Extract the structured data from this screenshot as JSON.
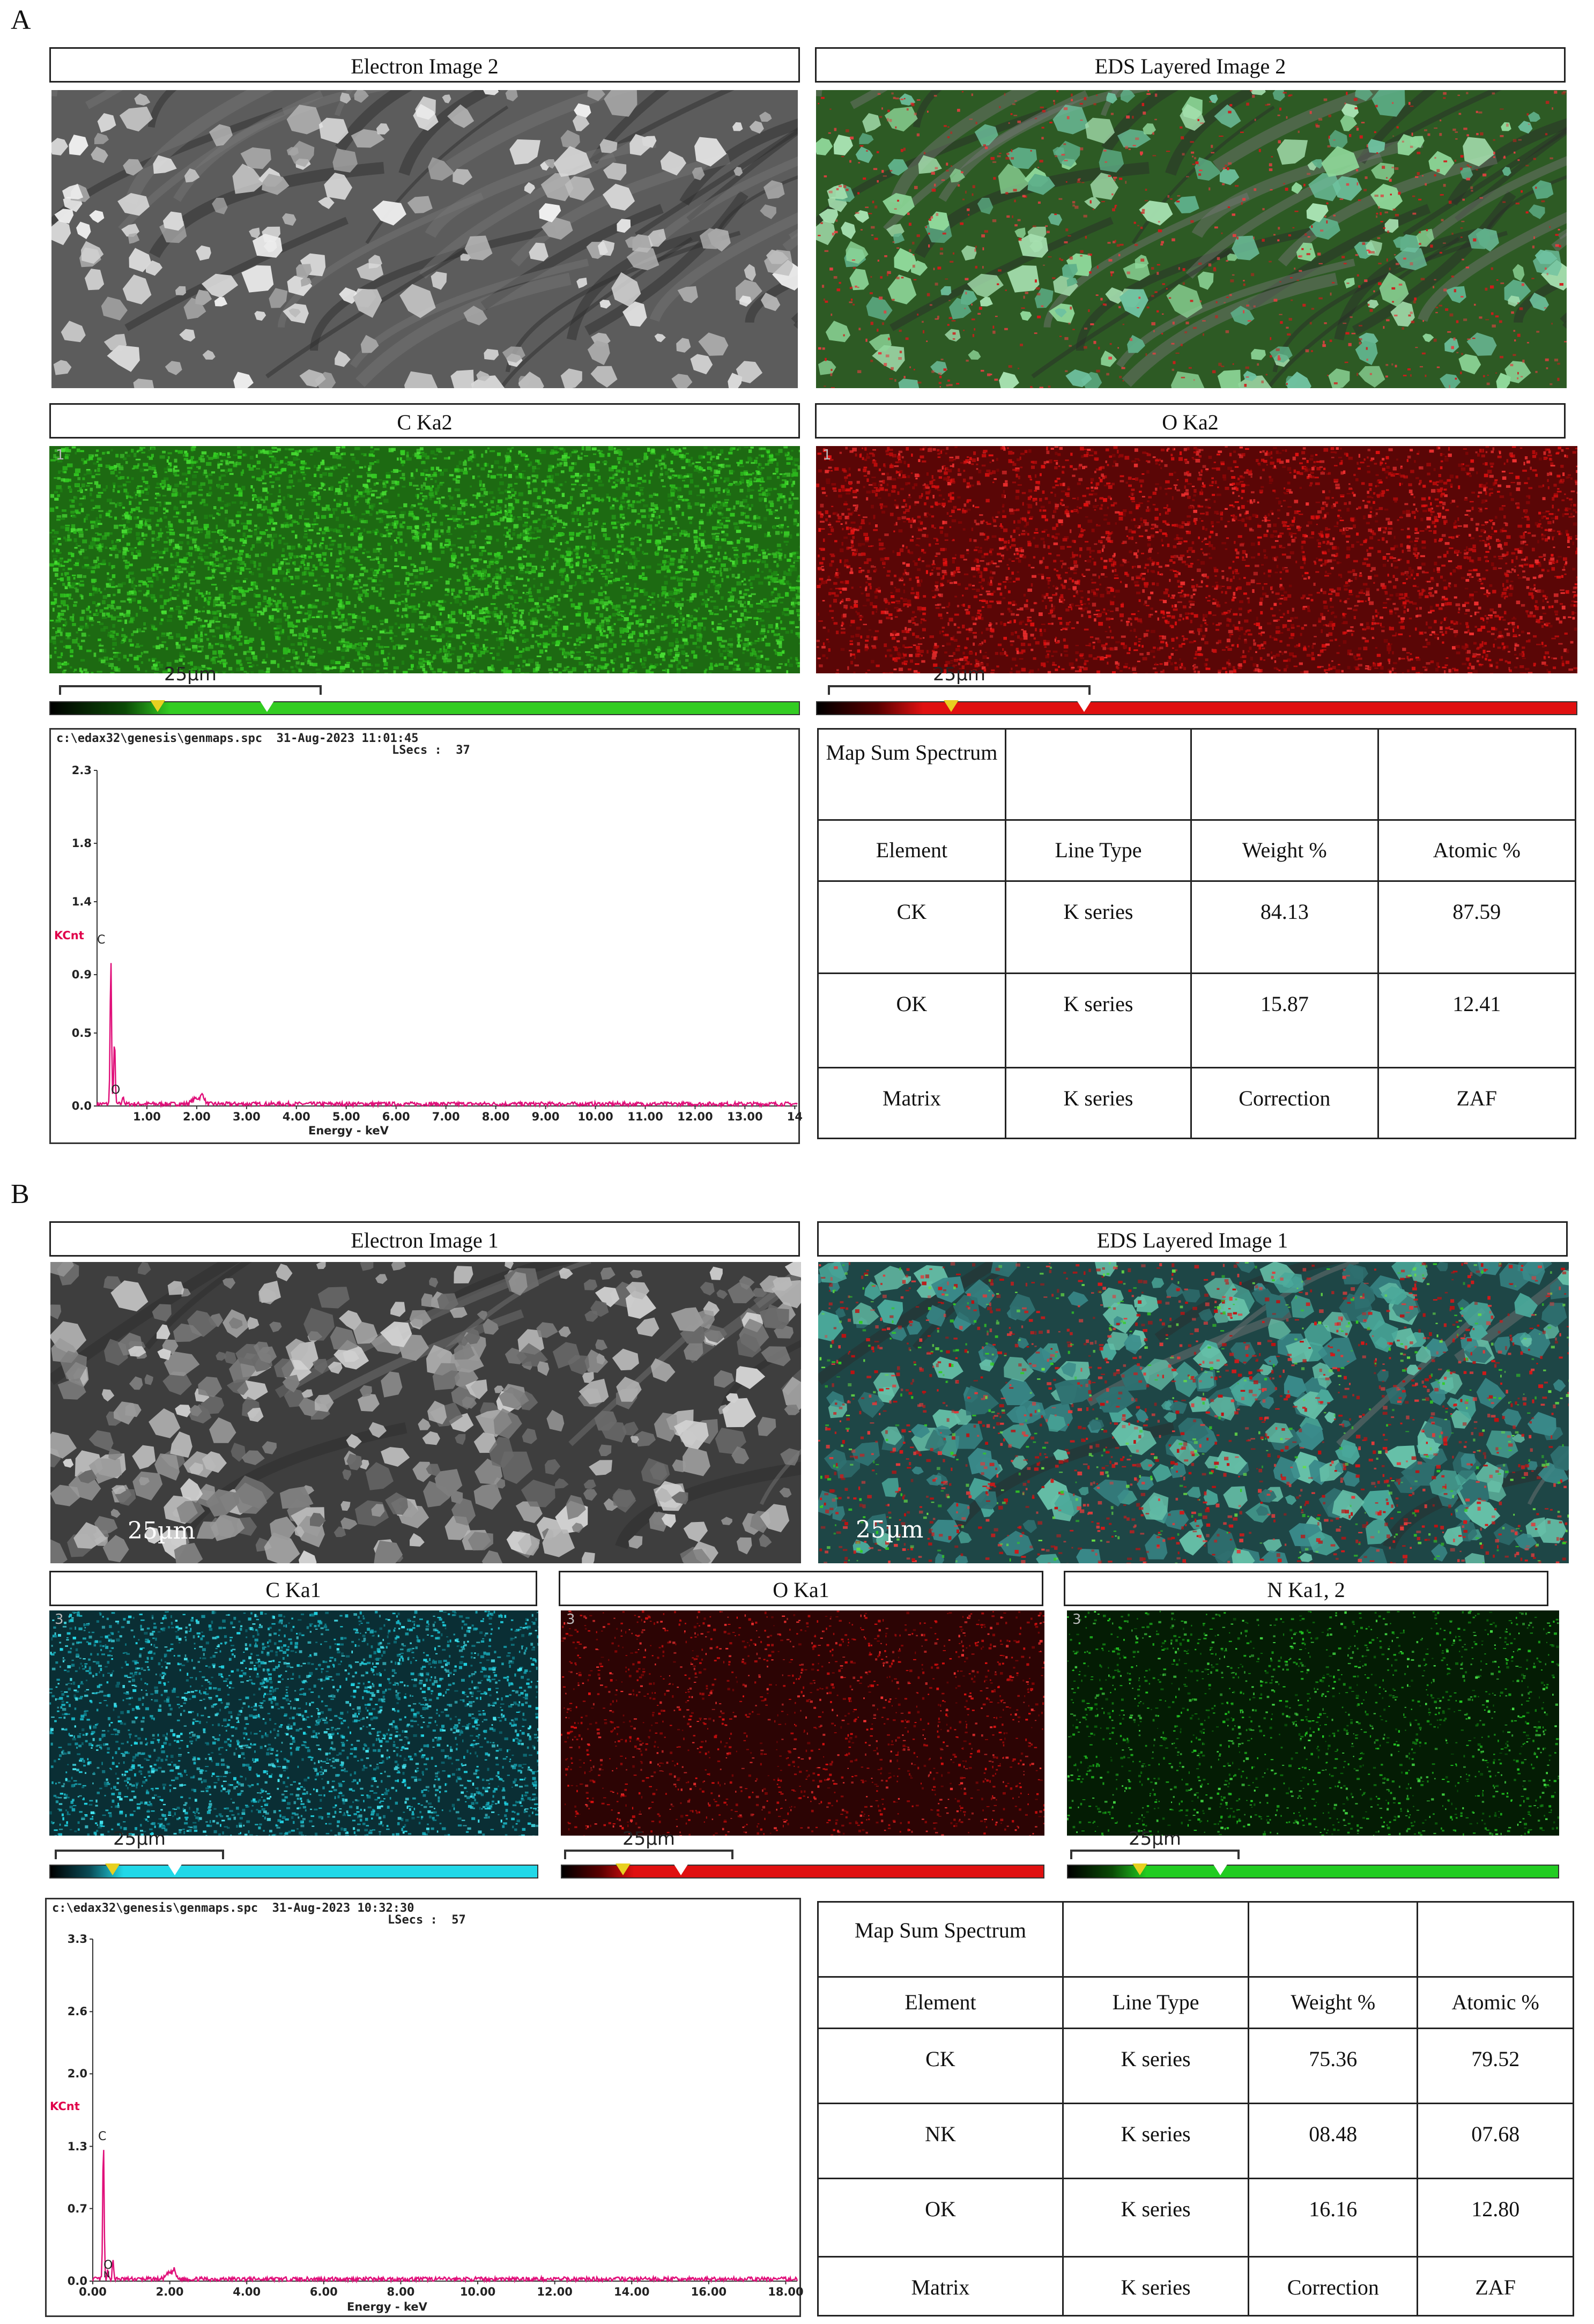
{
  "panel_a": {
    "letter": "A",
    "titles": {
      "electron": "Electron Image  2",
      "layered": "EDS Layered Image 2",
      "c_map": "C Ka2",
      "o_map": "O Ka2"
    },
    "map_index": "1",
    "scale_label": "25µm",
    "spectrum": {
      "header_line1": "c:\\edax32\\genesis\\genmaps.spc  31-Aug-2023 11:01:45",
      "header_line2": "LSecs :  37",
      "y_ticks": [
        "2.3",
        "1.8",
        "1.4",
        "0.9",
        "0.5",
        "0.0"
      ],
      "y_unit": "KCnt",
      "x_ticks": [
        "1.00",
        "2.00",
        "3.00",
        "4.00",
        "5.00",
        "6.00",
        "7.00",
        "8.00",
        "9.00",
        "10.00",
        "11.00",
        "12.00",
        "13.00",
        "14"
      ],
      "x_label": "Energy - keV",
      "peak_labels": [
        "C",
        "O"
      ]
    },
    "table": {
      "header": [
        "Map Sum Spectrum",
        "",
        "",
        ""
      ],
      "columns": [
        "Element",
        "Line Type",
        "Weight %",
        "Atomic %"
      ],
      "rows": [
        [
          "CK",
          "K series",
          "84.13",
          "87.59"
        ],
        [
          "OK",
          "K series",
          "15.87",
          "12.41"
        ],
        [
          "Matrix",
          "K series",
          "Correction",
          "ZAF"
        ]
      ]
    }
  },
  "panel_b": {
    "letter": "B",
    "titles": {
      "electron": "Electron Image 1",
      "layered": "EDS Layered Image 1",
      "c_map": "C Ka1",
      "o_map": "O Ka1",
      "n_map": "N Ka1, 2"
    },
    "map_index": "3",
    "scale_label": "25µm",
    "spectrum": {
      "header_line1": "c:\\edax32\\genesis\\genmaps.spc  31-Aug-2023 10:32:30",
      "header_line2": "LSecs :  57",
      "y_ticks": [
        "3.3",
        "2.6",
        "2.0",
        "1.3",
        "0.7",
        "0.0"
      ],
      "y_unit": "KCnt",
      "x_ticks": [
        "0.00",
        "2.00",
        "4.00",
        "6.00",
        "8.00",
        "10.00",
        "12.00",
        "14.00",
        "16.00",
        "18.00"
      ],
      "x_label": "Energy - keV",
      "peak_labels": [
        "C",
        "O",
        "N"
      ]
    },
    "table": {
      "header": [
        "Map Sum Spectrum",
        "",
        "",
        ""
      ],
      "columns": [
        "Element",
        "Line Type",
        "Weight %",
        "Atomic %"
      ],
      "rows": [
        [
          "CK",
          "K series",
          "75.36",
          "79.52"
        ],
        [
          "NK",
          "K series",
          "08.48",
          "07.68"
        ],
        [
          "OK",
          "K series",
          "16.16",
          "12.80"
        ],
        [
          "Matrix",
          "K series",
          "Correction",
          "ZAF"
        ]
      ]
    }
  },
  "colors": {
    "carbon_a": "#33cc22",
    "oxygen": "#e01010",
    "carbon_b": "#22d8e8",
    "nitrogen": "#22cc22",
    "spectrum_line": "#e0107a"
  }
}
